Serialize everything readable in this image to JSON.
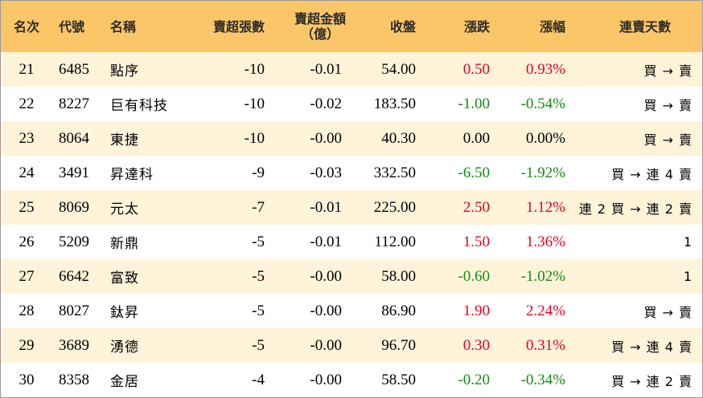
{
  "colors": {
    "header_bg": "#fbc668",
    "row_odd_bg": "#fff3da",
    "row_even_bg": "#ffffff",
    "up": "#e8001c",
    "down": "#148c14",
    "flat": "#000000"
  },
  "table": {
    "headers": {
      "rank": "名次",
      "code": "代號",
      "name": "名稱",
      "net_sell_lots": "賣超張數",
      "net_sell_amount_line1": "賣超金額",
      "net_sell_amount_line2": "（億）",
      "close": "收盤",
      "change": "漲跌",
      "change_pct": "漲幅",
      "consecutive_days": "連賣天數"
    },
    "rows": [
      {
        "rank": "21",
        "code": "6485",
        "name": "點序",
        "lots": "-10",
        "amount": "-0.01",
        "close": "54.00",
        "change": "0.50",
        "pct": "0.93%",
        "dir": "up",
        "days": "買 → 賣"
      },
      {
        "rank": "22",
        "code": "8227",
        "name": "巨有科技",
        "lots": "-10",
        "amount": "-0.02",
        "close": "183.50",
        "change": "-1.00",
        "pct": "-0.54%",
        "dir": "down",
        "days": "買 → 賣"
      },
      {
        "rank": "23",
        "code": "8064",
        "name": "東捷",
        "lots": "-10",
        "amount": "-0.00",
        "close": "40.30",
        "change": "0.00",
        "pct": "0.00%",
        "dir": "flat",
        "days": "買 → 賣"
      },
      {
        "rank": "24",
        "code": "3491",
        "name": "昇達科",
        "lots": "-9",
        "amount": "-0.03",
        "close": "332.50",
        "change": "-6.50",
        "pct": "-1.92%",
        "dir": "down",
        "days": "買 → 連 4 賣"
      },
      {
        "rank": "25",
        "code": "8069",
        "name": "元太",
        "lots": "-7",
        "amount": "-0.01",
        "close": "225.00",
        "change": "2.50",
        "pct": "1.12%",
        "dir": "up",
        "days": "連 2 買 → 連 2 賣"
      },
      {
        "rank": "26",
        "code": "5209",
        "name": "新鼎",
        "lots": "-5",
        "amount": "-0.01",
        "close": "112.00",
        "change": "1.50",
        "pct": "1.36%",
        "dir": "up",
        "days": "1"
      },
      {
        "rank": "27",
        "code": "6642",
        "name": "富致",
        "lots": "-5",
        "amount": "-0.00",
        "close": "58.00",
        "change": "-0.60",
        "pct": "-1.02%",
        "dir": "down",
        "days": "1"
      },
      {
        "rank": "28",
        "code": "8027",
        "name": "鈦昇",
        "lots": "-5",
        "amount": "-0.00",
        "close": "86.90",
        "change": "1.90",
        "pct": "2.24%",
        "dir": "up",
        "days": "買 → 賣"
      },
      {
        "rank": "29",
        "code": "3689",
        "name": "湧德",
        "lots": "-5",
        "amount": "-0.00",
        "close": "96.70",
        "change": "0.30",
        "pct": "0.31%",
        "dir": "up",
        "days": "買 → 連 4 賣"
      },
      {
        "rank": "30",
        "code": "8358",
        "name": "金居",
        "lots": "-4",
        "amount": "-0.00",
        "close": "58.50",
        "change": "-0.20",
        "pct": "-0.34%",
        "dir": "down",
        "days": "買 → 連 2 賣"
      }
    ]
  }
}
